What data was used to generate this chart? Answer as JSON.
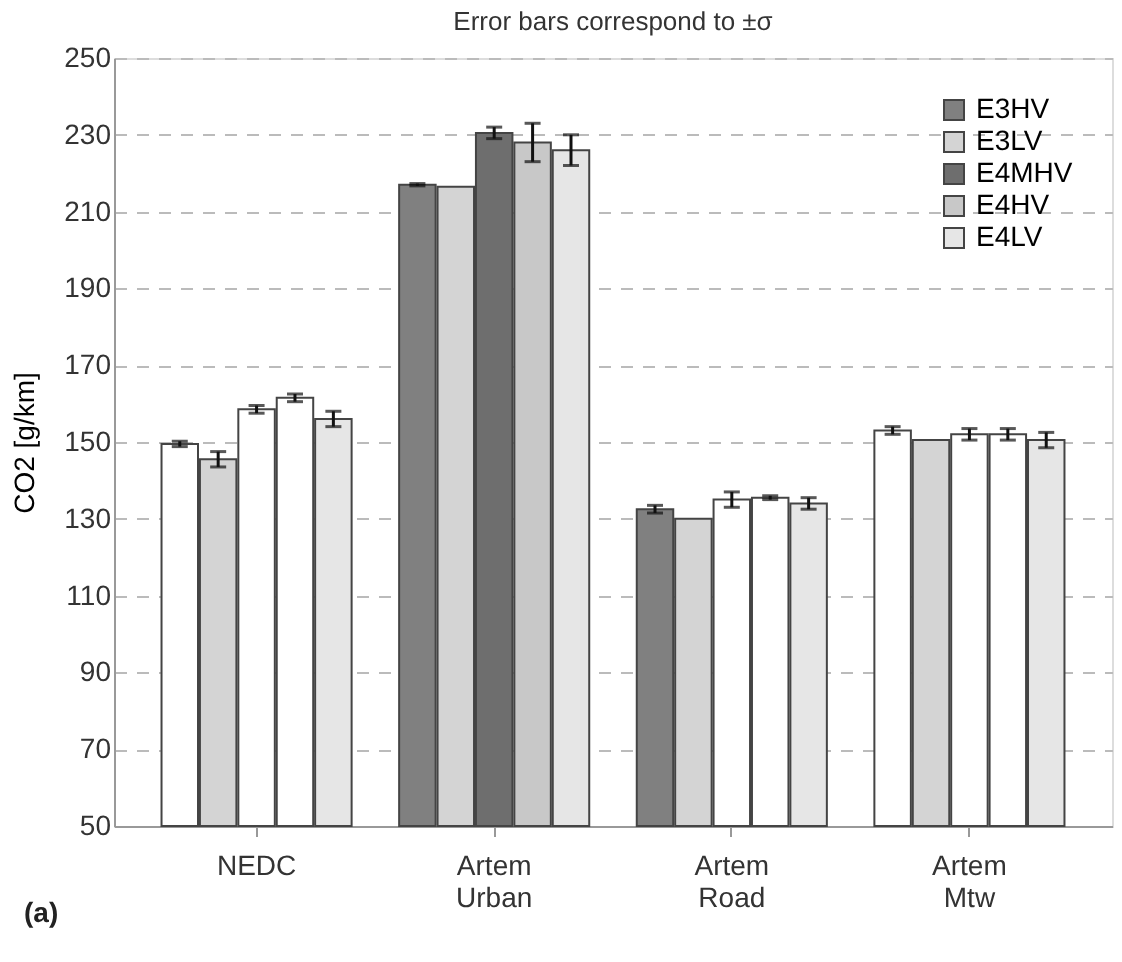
{
  "chart_data": {
    "type": "bar",
    "title": "Error bars correspond to ±σ",
    "ylabel": "CO2 [g/km]",
    "categories": [
      "NEDC",
      "Artem Urban",
      "Artem Road",
      "Artem Mtw"
    ],
    "series": [
      {
        "name": "E3HV",
        "color": "#808080",
        "colors": [
          "#ffffff",
          "#808080",
          "#808080",
          "#ffffff"
        ],
        "values": [
          149.5,
          217,
          132.5,
          153
        ],
        "errors": [
          0.7,
          0.3,
          1,
          1
        ]
      },
      {
        "name": "E3LV",
        "color": "#d4d4d4",
        "colors": [
          "#d4d4d4",
          "#d4d4d4",
          "#d4d4d4",
          "#d4d4d4"
        ],
        "values": [
          145.5,
          216.5,
          130,
          150.5
        ],
        "errors": [
          2,
          null,
          null,
          null
        ]
      },
      {
        "name": "E4MHV",
        "color": "#6e6e6e",
        "colors": [
          "#ffffff",
          "#6e6e6e",
          "#ffffff",
          "#ffffff"
        ],
        "values": [
          158.5,
          230.5,
          135,
          152
        ],
        "errors": [
          1,
          1.5,
          2,
          1.5
        ]
      },
      {
        "name": "E4HV",
        "color": "#c8c8c8",
        "colors": [
          "#ffffff",
          "#c8c8c8",
          "#ffffff",
          "#ffffff"
        ],
        "values": [
          161.5,
          228,
          135.5,
          152
        ],
        "errors": [
          1,
          5,
          0.5,
          1.5
        ]
      },
      {
        "name": "E4LV",
        "color": "#e6e6e6",
        "colors": [
          "#e6e6e6",
          "#e6e6e6",
          "#e6e6e6",
          "#e6e6e6"
        ],
        "values": [
          156,
          226,
          134,
          150.5
        ],
        "errors": [
          2,
          4,
          1.5,
          2
        ]
      }
    ],
    "ylim": [
      50,
      250
    ],
    "yticks": [
      50,
      70,
      90,
      110,
      130,
      150,
      170,
      190,
      210,
      230,
      250
    ],
    "grid": "y",
    "legend": "top right",
    "annotations": [
      "(a)"
    ]
  }
}
